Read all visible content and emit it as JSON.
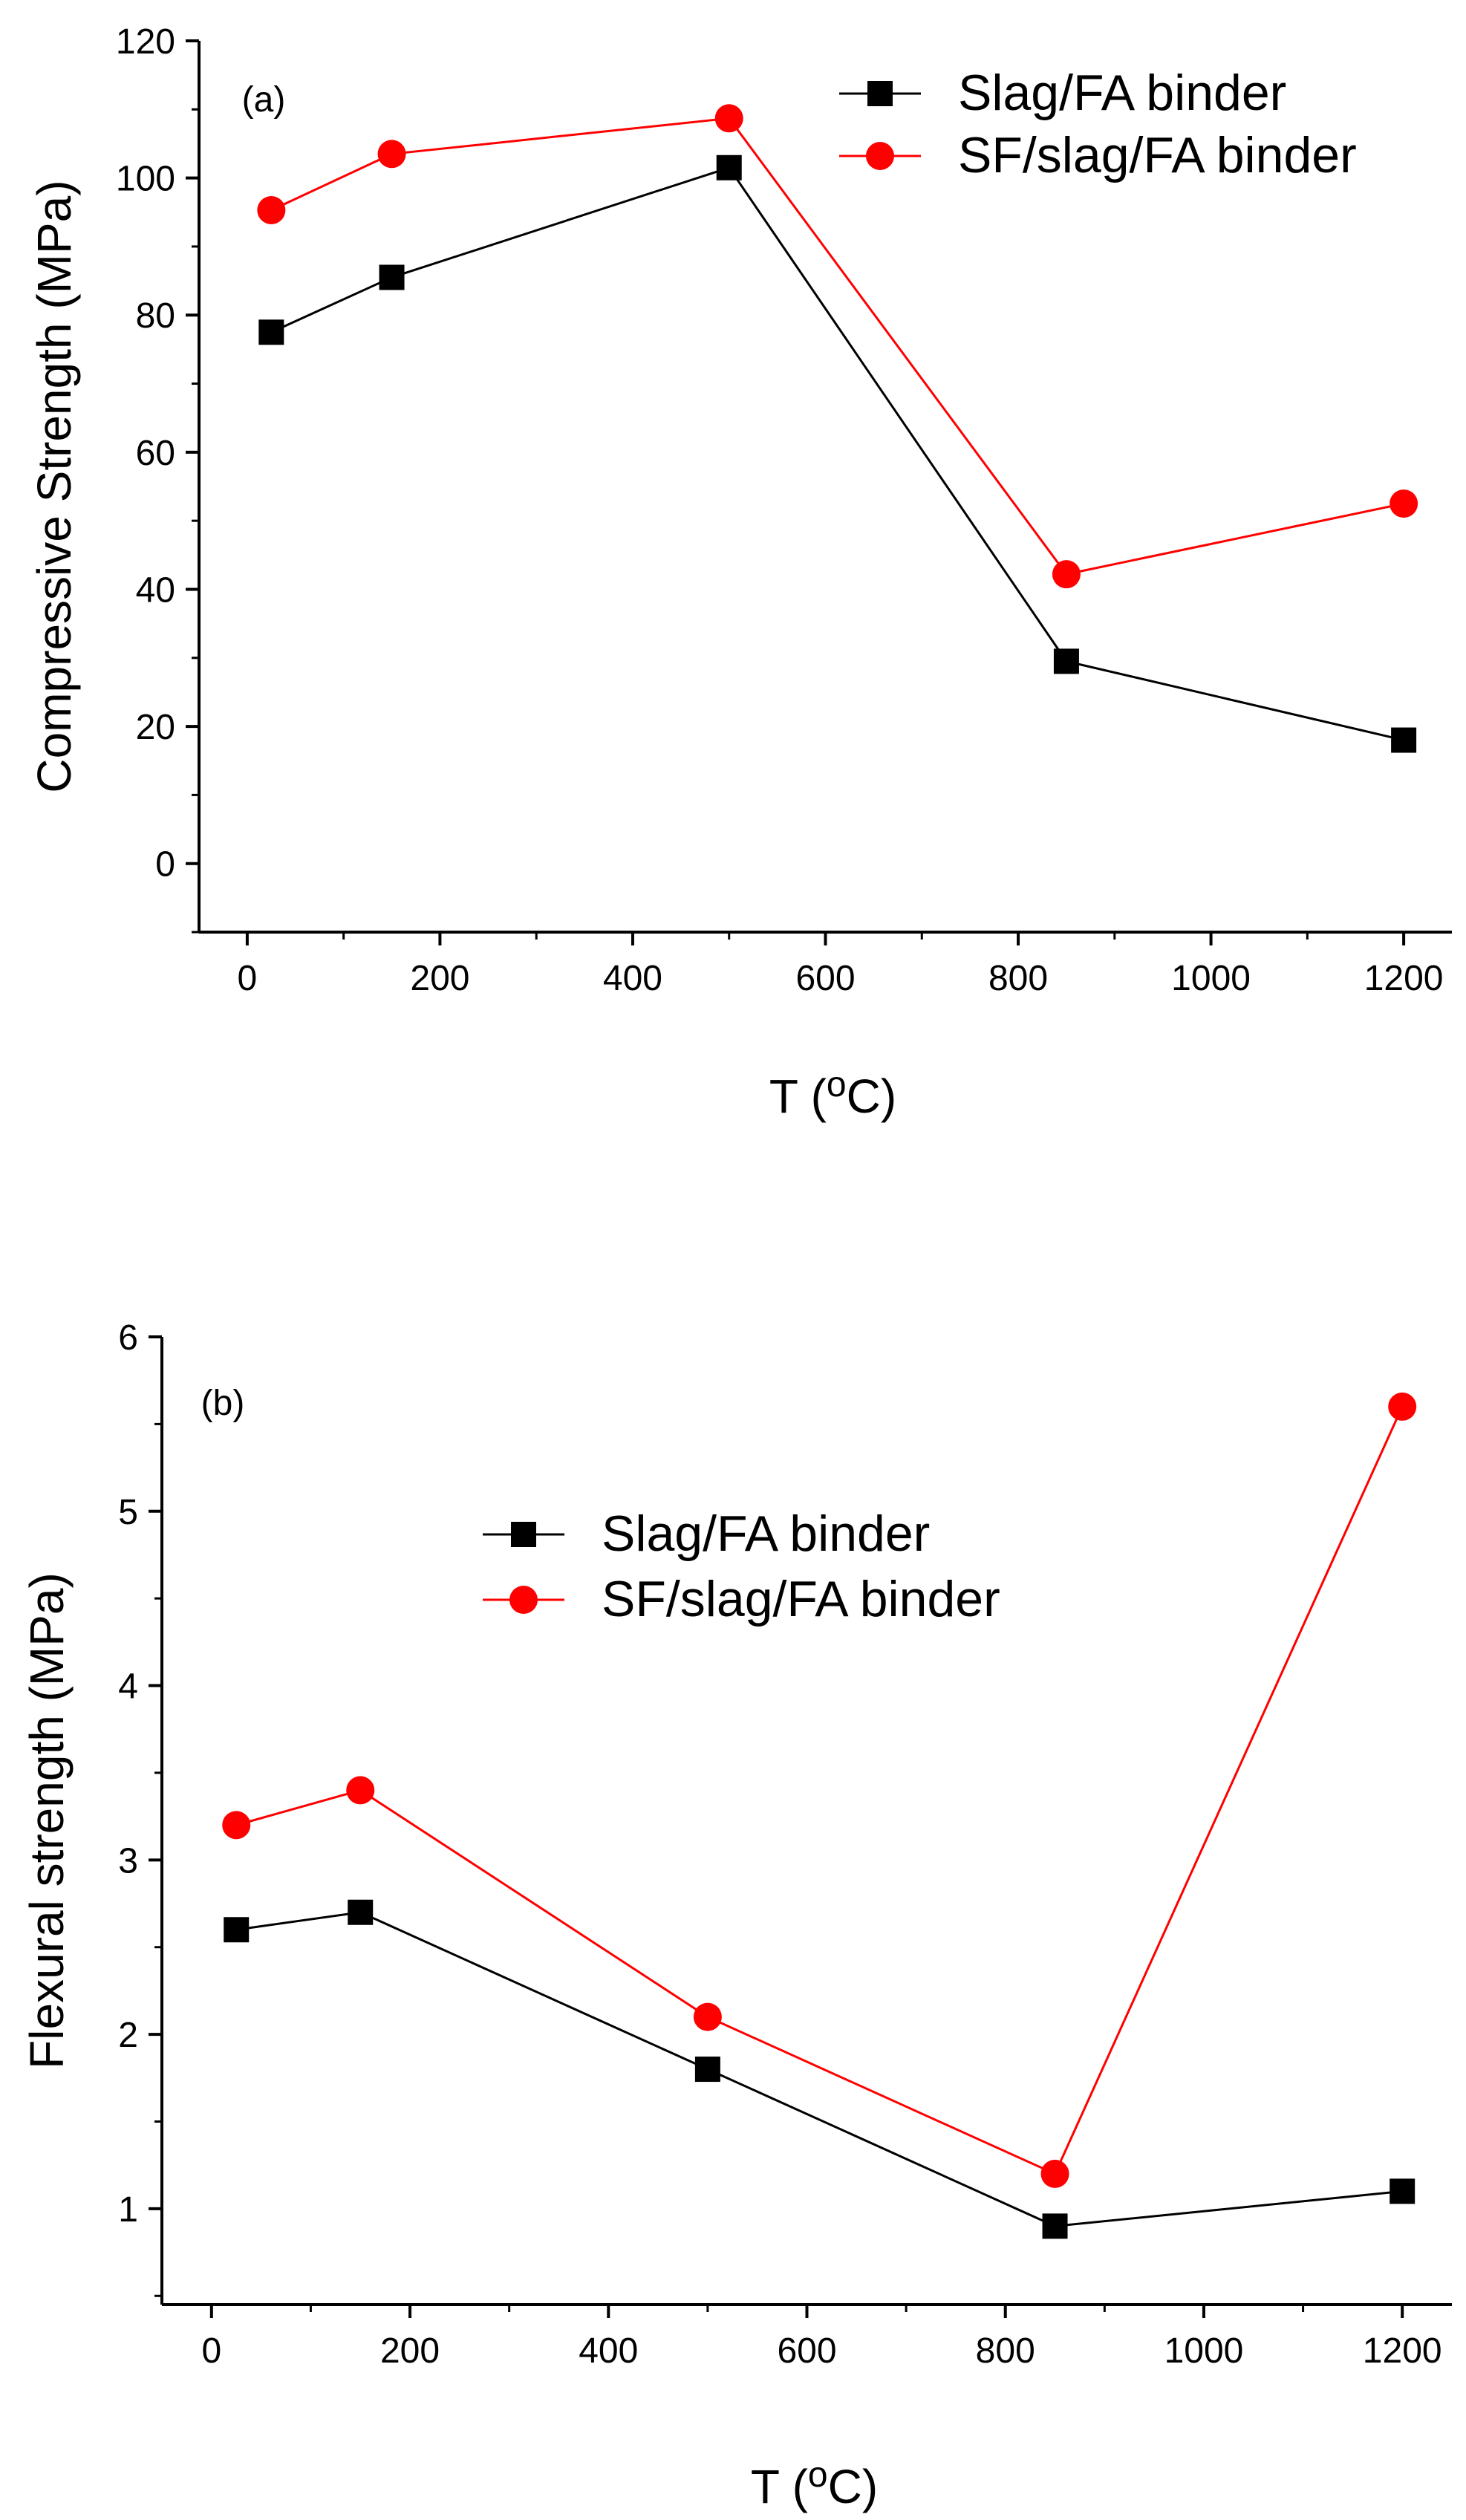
{
  "chart_data": [
    {
      "type": "line",
      "panel_label": "(a)",
      "x": [
        25,
        150,
        500,
        850,
        1200
      ],
      "xlabel": "T",
      "xlabel_unit_pre": "(",
      "xlabel_unit_sup": "o",
      "xlabel_unit_post": "C)",
      "ylabel": "Compressive Strength (MPa)",
      "xlim": [
        -50,
        1250
      ],
      "ylim": [
        -10,
        120
      ],
      "x_ticks": [
        0,
        200,
        400,
        600,
        800,
        1000,
        1200
      ],
      "y_ticks": [
        0,
        20,
        40,
        60,
        80,
        100,
        120
      ],
      "legend_position": "top-right",
      "series": [
        {
          "name": "Slag/FA binder",
          "marker": "square",
          "color": "#000000",
          "values": [
            77.5,
            85.5,
            101.5,
            29.5,
            18.0
          ]
        },
        {
          "name": "SF/slag/FA binder",
          "marker": "circle",
          "color": "#ff0000",
          "values": [
            95.3,
            103.5,
            108.7,
            42.2,
            52.5
          ]
        }
      ]
    },
    {
      "type": "line",
      "panel_label": "(b)",
      "x": [
        25,
        150,
        500,
        850,
        1200
      ],
      "xlabel": "T",
      "xlabel_unit_pre": "(",
      "xlabel_unit_sup": "o",
      "xlabel_unit_post": "C)",
      "ylabel": "Flexural strength (MPa)",
      "xlim": [
        -50,
        1250
      ],
      "ylim": [
        0.45,
        6
      ],
      "x_ticks": [
        0,
        200,
        400,
        600,
        800,
        1000,
        1200
      ],
      "y_ticks": [
        1,
        2,
        3,
        4,
        5,
        6
      ],
      "legend_position": "top-center",
      "series": [
        {
          "name": "Slag/FA binder",
          "marker": "square",
          "color": "#000000",
          "values": [
            2.6,
            2.7,
            1.8,
            0.9,
            1.1
          ]
        },
        {
          "name": "SF/slag/FA binder",
          "marker": "circle",
          "color": "#ff0000",
          "values": [
            3.2,
            3.4,
            2.1,
            1.2,
            5.6
          ]
        }
      ]
    }
  ]
}
